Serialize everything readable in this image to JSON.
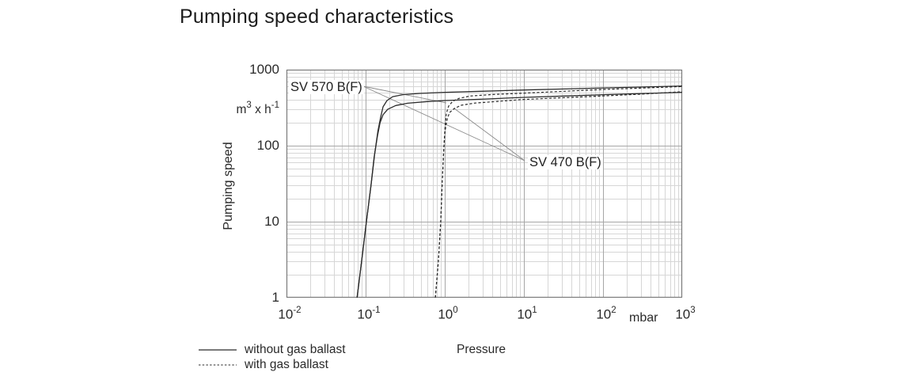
{
  "title": "Pumping speed characteristics",
  "colors": {
    "background": "#ffffff",
    "text": "#2a2a2a",
    "curve": "#2b2b2b",
    "leader_line": "#8a8a8a",
    "grid_minor": "#d6d6d6",
    "grid_major": "#a6a6a6",
    "plot_border": "#7a7a7a"
  },
  "chart_data": {
    "type": "line",
    "title": "Pumping speed characteristics",
    "xlabel": "Pressure",
    "x_unit": "mbar",
    "ylabel": "Pumping speed",
    "y_unit_parts": [
      {
        "t": "m"
      },
      {
        "t": "3",
        "sup": true
      },
      {
        "t": " x h"
      },
      {
        "t": "-1",
        "sup": true
      }
    ],
    "x_scale": "log",
    "y_scale": "log",
    "xlim": [
      0.01,
      1000
    ],
    "ylim": [
      1,
      1000
    ],
    "grid": "log major + minor, both axes",
    "legend_position": "bottom-left",
    "x_ticks": [
      {
        "base": "10",
        "exp": "-2"
      },
      {
        "base": "10",
        "exp": "-1"
      },
      {
        "base": "10",
        "exp": "0"
      },
      {
        "base": "10",
        "exp": "1"
      },
      {
        "base": "10",
        "exp": "2"
      },
      {
        "base": "10",
        "exp": "3"
      }
    ],
    "y_ticks": [
      "1000",
      "100",
      "10",
      "1"
    ],
    "legend": [
      {
        "style": "solid",
        "label": "without gas ballast"
      },
      {
        "style": "dashed",
        "label": "with gas ballast"
      }
    ],
    "annotations": [
      {
        "label": "SV 570 B(F)"
      },
      {
        "label": "SV 470 B(F)"
      }
    ],
    "series": [
      {
        "pump": "SV 570 B(F)",
        "variant": "without gas ballast",
        "style": "solid",
        "points": [
          [
            0.078,
            1
          ],
          [
            0.089,
            3
          ],
          [
            0.102,
            9.8
          ],
          [
            0.117,
            30
          ],
          [
            0.13,
            77
          ],
          [
            0.143,
            155
          ],
          [
            0.155,
            237
          ],
          [
            0.166,
            324
          ],
          [
            0.186,
            392
          ],
          [
            0.22,
            441
          ],
          [
            0.3,
            470
          ],
          [
            0.48,
            487
          ],
          [
            1.0,
            504
          ],
          [
            3.2,
            521
          ],
          [
            10,
            540
          ],
          [
            32,
            557
          ],
          [
            100,
            574
          ],
          [
            320,
            592
          ],
          [
            1000,
            610
          ]
        ]
      },
      {
        "pump": "SV 470 B(F)",
        "variant": "without gas ballast",
        "style": "solid",
        "points": [
          [
            0.078,
            1
          ],
          [
            0.089,
            3
          ],
          [
            0.102,
            9.8
          ],
          [
            0.117,
            30
          ],
          [
            0.128,
            70
          ],
          [
            0.141,
            133
          ],
          [
            0.152,
            200
          ],
          [
            0.166,
            255
          ],
          [
            0.19,
            301
          ],
          [
            0.24,
            337
          ],
          [
            0.34,
            362
          ],
          [
            0.6,
            380
          ],
          [
            1.0,
            392
          ],
          [
            3.2,
            411
          ],
          [
            10,
            432
          ],
          [
            32,
            450
          ],
          [
            100,
            469
          ],
          [
            320,
            486
          ],
          [
            1000,
            503
          ]
        ]
      },
      {
        "pump": "SV 570 B(F)",
        "variant": "with gas ballast",
        "style": "dashed",
        "points": [
          [
            0.76,
            1
          ],
          [
            0.83,
            3
          ],
          [
            0.89,
            9.8
          ],
          [
            0.93,
            33
          ],
          [
            0.97,
            87
          ],
          [
            1.01,
            178
          ],
          [
            1.05,
            268
          ],
          [
            1.12,
            332
          ],
          [
            1.26,
            384
          ],
          [
            1.51,
            419
          ],
          [
            2.1,
            450
          ],
          [
            3.8,
            470
          ],
          [
            10,
            492
          ],
          [
            32,
            520
          ],
          [
            100,
            549
          ],
          [
            320,
            573
          ],
          [
            1000,
            600
          ]
        ]
      },
      {
        "pump": "SV 470 B(F)",
        "variant": "with gas ballast",
        "style": "dashed",
        "points": [
          [
            0.76,
            1
          ],
          [
            0.83,
            3
          ],
          [
            0.89,
            9.8
          ],
          [
            0.93,
            33
          ],
          [
            0.97,
            87
          ],
          [
            1.0,
            140
          ],
          [
            1.03,
            180
          ],
          [
            1.08,
            227
          ],
          [
            1.15,
            273
          ],
          [
            1.32,
            309
          ],
          [
            1.62,
            341
          ],
          [
            2.4,
            363
          ],
          [
            4.8,
            383
          ],
          [
            10,
            406
          ],
          [
            32,
            428
          ],
          [
            100,
            451
          ],
          [
            320,
            478
          ],
          [
            1000,
            512
          ]
        ]
      }
    ]
  }
}
